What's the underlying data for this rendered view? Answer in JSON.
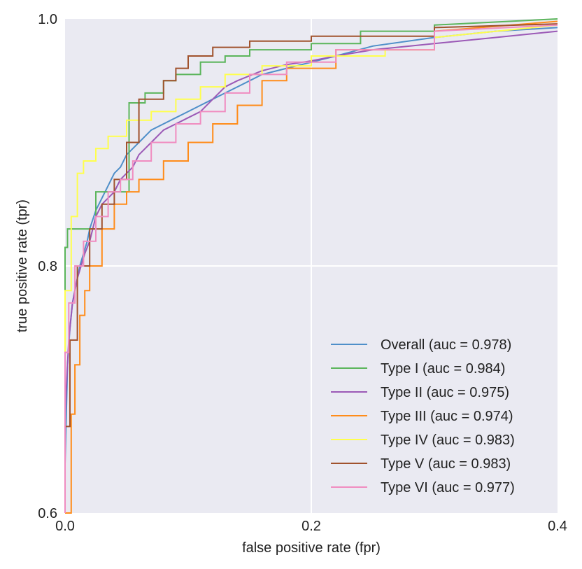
{
  "chart_data": {
    "type": "line",
    "title": "",
    "xlabel": "false positive rate (fpr)",
    "ylabel": "true positive rate (tpr)",
    "xlim": [
      0.0,
      0.4
    ],
    "ylim": [
      0.6,
      1.0
    ],
    "grid": true,
    "background": "#eaeaf2",
    "legend_position": "lower-right",
    "x_ticks": [
      0.0,
      0.2,
      0.4
    ],
    "x_tick_labels": [
      "0.0",
      "0.2",
      "0.4"
    ],
    "y_ticks": [
      0.6,
      0.8,
      1.0
    ],
    "y_tick_labels": [
      "0.6",
      "0.8",
      "1.0"
    ],
    "series": [
      {
        "name": "Overall (auc = 0.978)",
        "color": "#4f8fc9",
        "x": [
          0.0,
          0.0,
          0.002,
          0.004,
          0.006,
          0.008,
          0.01,
          0.012,
          0.015,
          0.018,
          0.02,
          0.025,
          0.03,
          0.035,
          0.04,
          0.045,
          0.05,
          0.055,
          0.06,
          0.07,
          0.08,
          0.09,
          0.1,
          0.11,
          0.12,
          0.13,
          0.14,
          0.15,
          0.16,
          0.18,
          0.2,
          0.22,
          0.25,
          0.3,
          0.35,
          0.4
        ],
        "y": [
          0.6,
          0.64,
          0.72,
          0.75,
          0.77,
          0.78,
          0.79,
          0.8,
          0.81,
          0.82,
          0.83,
          0.845,
          0.855,
          0.865,
          0.875,
          0.88,
          0.89,
          0.895,
          0.9,
          0.91,
          0.915,
          0.92,
          0.925,
          0.93,
          0.935,
          0.94,
          0.945,
          0.95,
          0.955,
          0.96,
          0.965,
          0.97,
          0.978,
          0.985,
          0.99,
          0.993
        ]
      },
      {
        "name": "Type I (auc = 0.984)",
        "color": "#5bb55b",
        "x": [
          0.0,
          0.0,
          0.002,
          0.002,
          0.01,
          0.01,
          0.025,
          0.025,
          0.03,
          0.03,
          0.052,
          0.052,
          0.065,
          0.065,
          0.08,
          0.08,
          0.09,
          0.09,
          0.11,
          0.11,
          0.13,
          0.13,
          0.15,
          0.15,
          0.2,
          0.2,
          0.24,
          0.24,
          0.3,
          0.3,
          0.4
        ],
        "y": [
          0.6,
          0.815,
          0.815,
          0.83,
          0.83,
          0.83,
          0.83,
          0.86,
          0.86,
          0.86,
          0.86,
          0.932,
          0.932,
          0.94,
          0.94,
          0.95,
          0.95,
          0.955,
          0.955,
          0.965,
          0.965,
          0.97,
          0.97,
          0.975,
          0.975,
          0.98,
          0.98,
          0.99,
          0.99,
          0.995,
          1.0
        ]
      },
      {
        "name": "Type II (auc = 0.975)",
        "color": "#9b59b6",
        "x": [
          0.0,
          0.0,
          0.003,
          0.006,
          0.01,
          0.013,
          0.016,
          0.02,
          0.025,
          0.03,
          0.035,
          0.04,
          0.045,
          0.05,
          0.055,
          0.06,
          0.065,
          0.07,
          0.08,
          0.09,
          0.1,
          0.11,
          0.12,
          0.13,
          0.14,
          0.16,
          0.18,
          0.2,
          0.22,
          0.25,
          0.3,
          0.35,
          0.4
        ],
        "y": [
          0.6,
          0.68,
          0.74,
          0.77,
          0.79,
          0.8,
          0.81,
          0.82,
          0.84,
          0.85,
          0.855,
          0.86,
          0.87,
          0.875,
          0.88,
          0.89,
          0.895,
          0.9,
          0.91,
          0.915,
          0.92,
          0.925,
          0.935,
          0.945,
          0.95,
          0.958,
          0.963,
          0.966,
          0.97,
          0.975,
          0.98,
          0.985,
          0.99
        ]
      },
      {
        "name": "Type III (auc = 0.974)",
        "color": "#ff8c1a",
        "x": [
          0.0,
          0.005,
          0.005,
          0.008,
          0.008,
          0.012,
          0.012,
          0.016,
          0.016,
          0.02,
          0.02,
          0.03,
          0.03,
          0.04,
          0.04,
          0.05,
          0.05,
          0.06,
          0.06,
          0.08,
          0.08,
          0.1,
          0.1,
          0.12,
          0.12,
          0.14,
          0.14,
          0.16,
          0.16,
          0.18,
          0.18,
          0.22,
          0.22,
          0.3,
          0.3,
          0.4
        ],
        "y": [
          0.6,
          0.6,
          0.68,
          0.68,
          0.72,
          0.72,
          0.76,
          0.76,
          0.78,
          0.78,
          0.8,
          0.8,
          0.83,
          0.83,
          0.85,
          0.85,
          0.86,
          0.86,
          0.87,
          0.87,
          0.885,
          0.885,
          0.9,
          0.9,
          0.915,
          0.915,
          0.93,
          0.93,
          0.95,
          0.95,
          0.96,
          0.96,
          0.975,
          0.975,
          0.99,
          0.998
        ]
      },
      {
        "name": "Type IV (auc = 0.983)",
        "color": "#ffff4d",
        "x": [
          0.0,
          0.0,
          0.005,
          0.005,
          0.01,
          0.01,
          0.015,
          0.015,
          0.025,
          0.025,
          0.035,
          0.035,
          0.05,
          0.05,
          0.07,
          0.07,
          0.09,
          0.09,
          0.11,
          0.11,
          0.13,
          0.13,
          0.16,
          0.16,
          0.2,
          0.2,
          0.26,
          0.26,
          0.3,
          0.3,
          0.4
        ],
        "y": [
          0.6,
          0.78,
          0.78,
          0.84,
          0.84,
          0.875,
          0.875,
          0.885,
          0.885,
          0.895,
          0.895,
          0.905,
          0.905,
          0.918,
          0.918,
          0.925,
          0.925,
          0.935,
          0.935,
          0.945,
          0.945,
          0.955,
          0.955,
          0.962,
          0.962,
          0.97,
          0.97,
          0.975,
          0.975,
          0.985,
          0.995
        ]
      },
      {
        "name": "Type V (auc = 0.983)",
        "color": "#a0522d",
        "x": [
          0.0,
          0.0,
          0.004,
          0.004,
          0.01,
          0.01,
          0.02,
          0.02,
          0.03,
          0.03,
          0.04,
          0.04,
          0.05,
          0.05,
          0.06,
          0.06,
          0.08,
          0.08,
          0.09,
          0.09,
          0.1,
          0.1,
          0.12,
          0.12,
          0.15,
          0.15,
          0.2,
          0.2,
          0.3,
          0.3,
          0.4
        ],
        "y": [
          0.6,
          0.67,
          0.67,
          0.74,
          0.74,
          0.8,
          0.8,
          0.83,
          0.83,
          0.85,
          0.85,
          0.87,
          0.87,
          0.9,
          0.9,
          0.935,
          0.935,
          0.95,
          0.95,
          0.96,
          0.96,
          0.97,
          0.97,
          0.977,
          0.977,
          0.982,
          0.982,
          0.986,
          0.986,
          0.993,
          0.996
        ]
      },
      {
        "name": "Type VI (auc = 0.977)",
        "color": "#f08cc0",
        "x": [
          0.0,
          0.0,
          0.003,
          0.003,
          0.008,
          0.008,
          0.015,
          0.015,
          0.025,
          0.025,
          0.035,
          0.035,
          0.045,
          0.045,
          0.055,
          0.055,
          0.07,
          0.07,
          0.09,
          0.09,
          0.11,
          0.11,
          0.13,
          0.13,
          0.15,
          0.15,
          0.18,
          0.18,
          0.22,
          0.22,
          0.3,
          0.3,
          0.4
        ],
        "y": [
          0.6,
          0.73,
          0.73,
          0.77,
          0.77,
          0.8,
          0.8,
          0.82,
          0.82,
          0.84,
          0.84,
          0.86,
          0.86,
          0.87,
          0.87,
          0.885,
          0.885,
          0.9,
          0.9,
          0.915,
          0.915,
          0.925,
          0.925,
          0.94,
          0.94,
          0.955,
          0.955,
          0.965,
          0.965,
          0.975,
          0.975,
          0.99,
          0.995
        ]
      }
    ]
  }
}
